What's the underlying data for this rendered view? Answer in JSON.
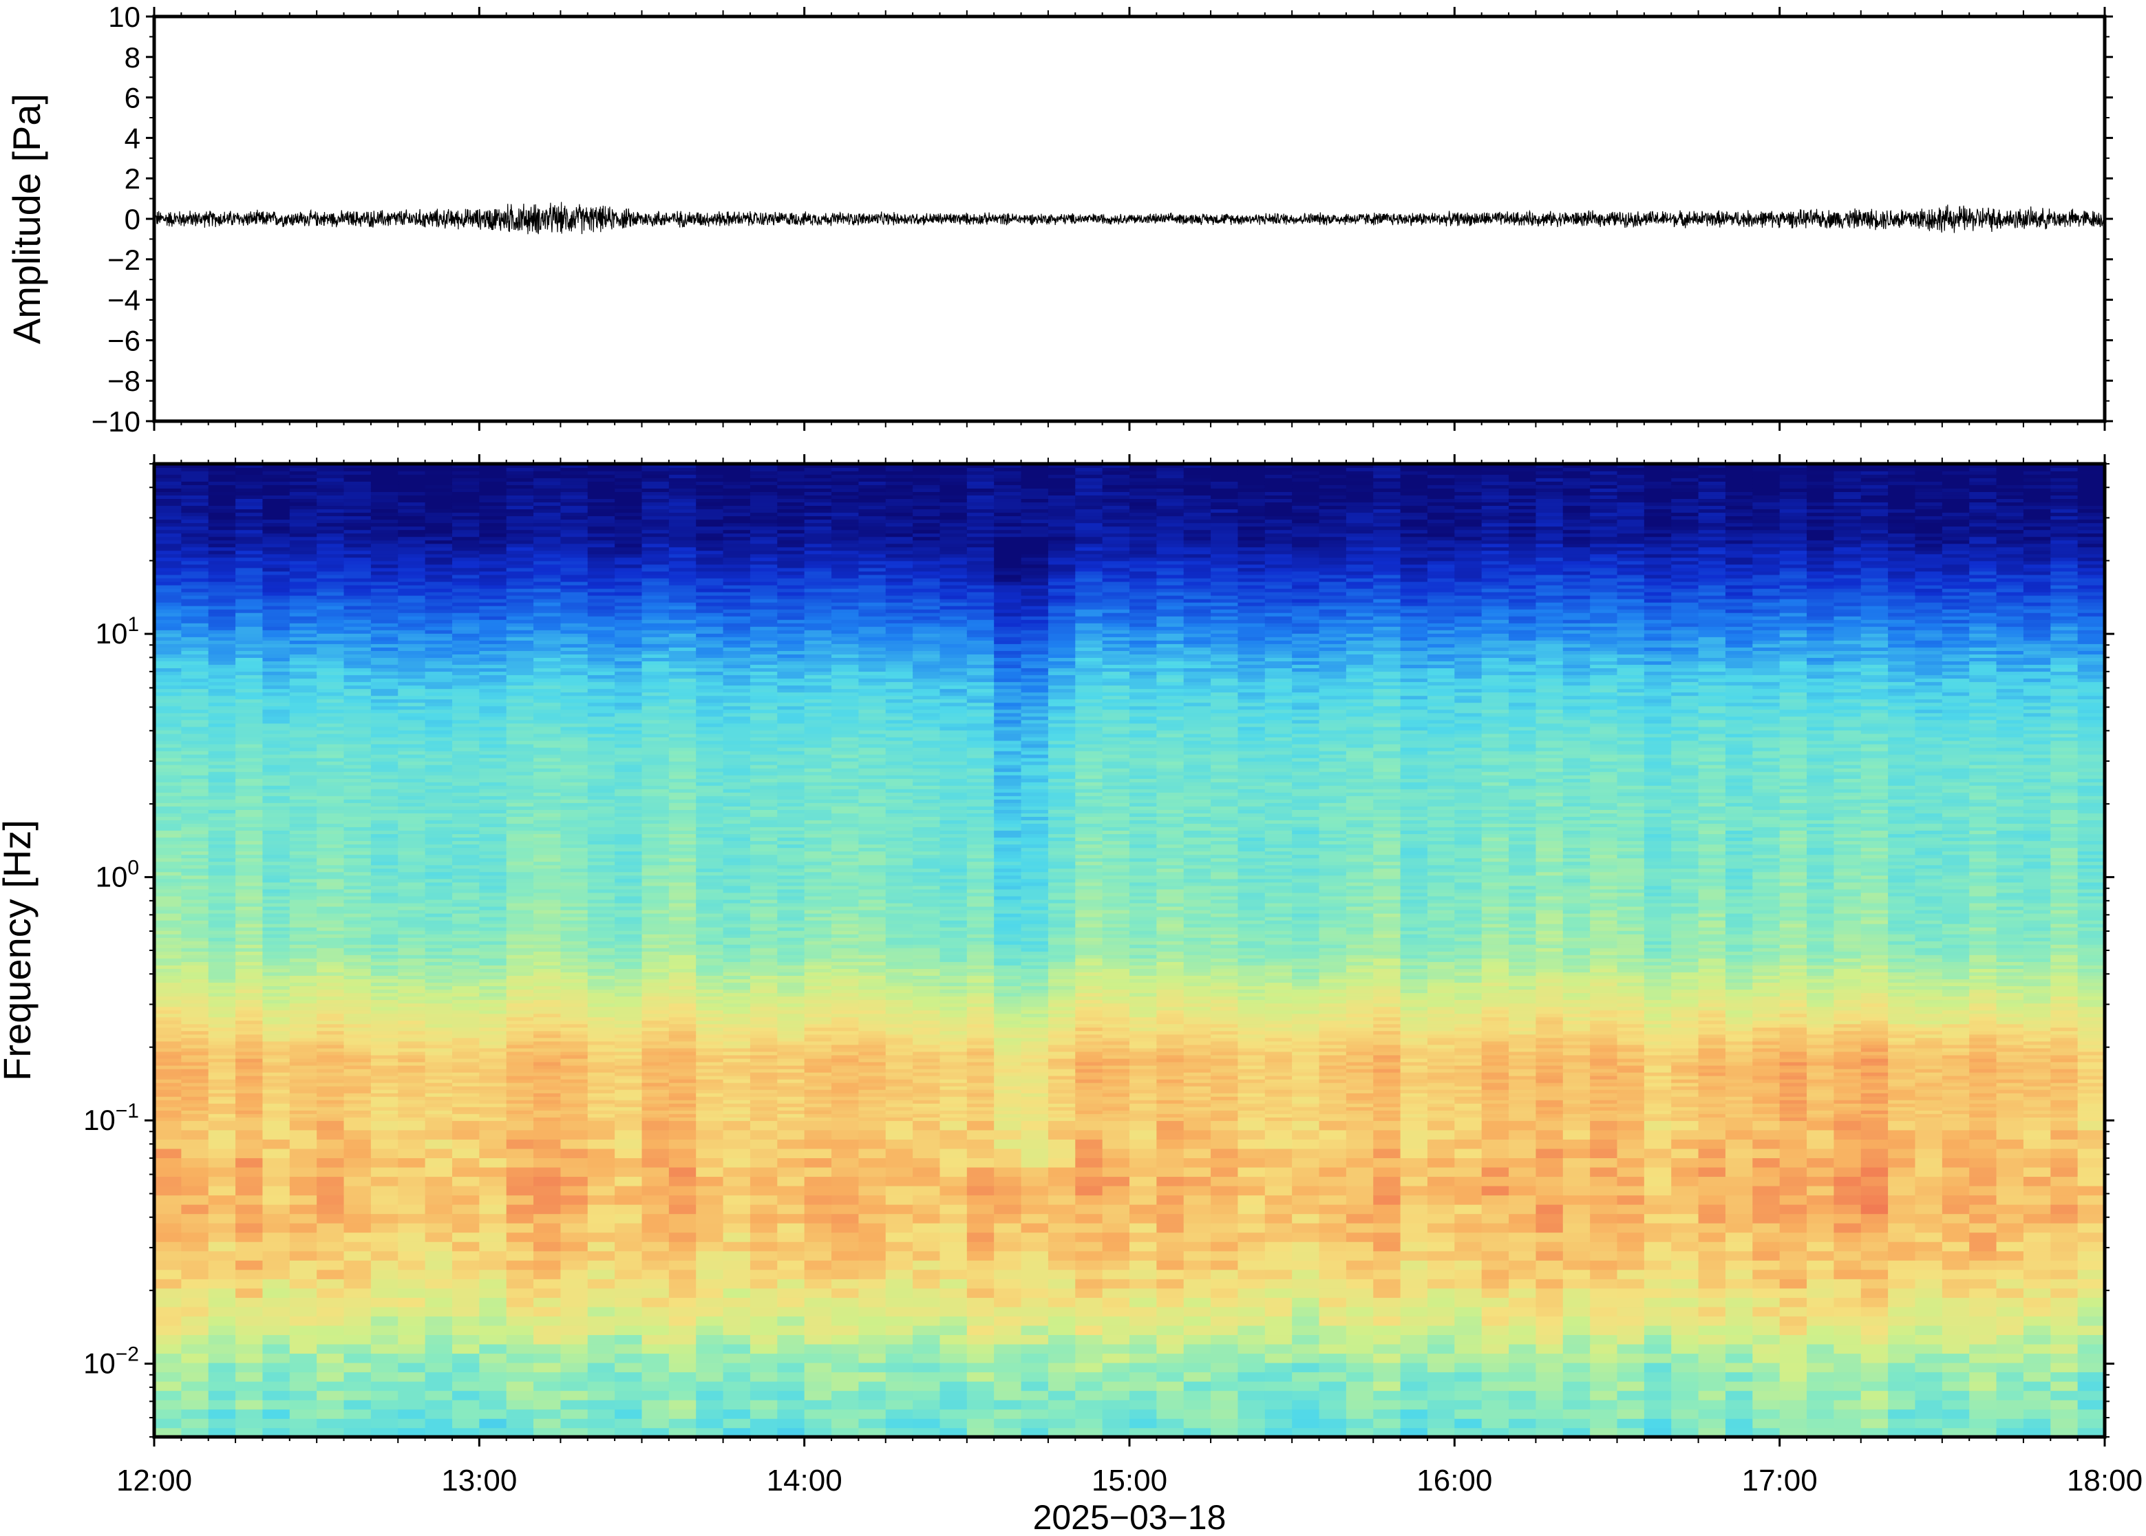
{
  "chart_data": [
    {
      "type": "line",
      "panel": "waveform",
      "ylabel": "Amplitude [Pa]",
      "ylim": [
        -10,
        10
      ],
      "yticks": [
        10,
        8,
        6,
        4,
        2,
        0,
        -2,
        -4,
        -6,
        -8,
        -10
      ],
      "ytick_labels": [
        "10",
        "8",
        "6",
        "4",
        "2",
        "0",
        "−2",
        "−4",
        "−6",
        "−8",
        "−10"
      ],
      "series": [
        {
          "color": "#000000",
          "x_hours": [
            12.0,
            12.5,
            13.0,
            13.1,
            13.3,
            13.5,
            14.0,
            14.5,
            15.0,
            15.5,
            16.0,
            16.5,
            17.0,
            17.3,
            17.5,
            17.8,
            18.0
          ],
          "envelope": [
            0.5,
            0.45,
            0.6,
            0.9,
            0.9,
            0.5,
            0.4,
            0.35,
            0.3,
            0.35,
            0.4,
            0.45,
            0.5,
            0.6,
            0.8,
            0.6,
            0.5
          ]
        }
      ],
      "grid": false
    },
    {
      "type": "heatmap",
      "panel": "spectrogram",
      "ylabel": "Frequency [Hz]",
      "yscale": "log",
      "ylim": [
        0.005,
        50
      ],
      "yticks": [
        0.01,
        0.1,
        1,
        10
      ],
      "ytick_labels": [
        {
          "base": "10",
          "exp": "−2"
        },
        {
          "base": "10",
          "exp": "−1"
        },
        {
          "base": "10",
          "exp": "0"
        },
        {
          "base": "10",
          "exp": "1"
        }
      ],
      "colormap": [
        "#0a0a78",
        "#0f2fd0",
        "#1e7ff0",
        "#4fd8ea",
        "#88eac0",
        "#cff08a",
        "#f5e07e",
        "#f8b060",
        "#f07050",
        "#e04040"
      ],
      "description_bands": {
        "dark_blue_above_hz": 20,
        "blue_above_hz": 5,
        "cyan_green_hz": [
          0.3,
          5
        ],
        "yellow_orange_hz": [
          0.02,
          0.3
        ],
        "blue_below_hz": 0.012
      },
      "grid": false
    }
  ],
  "xaxis": {
    "ticks": [
      "12:00",
      "13:00",
      "14:00",
      "15:00",
      "16:00",
      "17:00",
      "18:00"
    ],
    "label": "2025−03−18",
    "range_hours": [
      12,
      18
    ]
  }
}
